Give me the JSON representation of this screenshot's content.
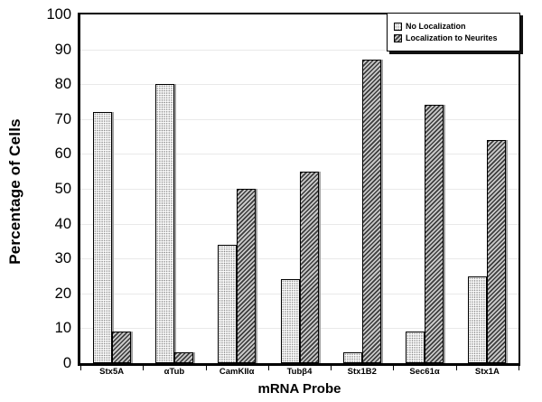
{
  "figure": {
    "background_color": "#ffffff",
    "axis_color": "#000000",
    "gridline_color": "#e9e9e9",
    "bar_border_color": "#000000",
    "bar_shadow_color": "#a0a0a0",
    "dots_pattern_color": "#7d7d7d",
    "hatch_pattern_color": "#3d3d3d"
  },
  "chart_data": {
    "type": "bar",
    "title": "",
    "xlabel": "mRNA Probe",
    "ylabel": "Percentage of Cells",
    "ylim": [
      0,
      100
    ],
    "yticks": [
      0,
      10,
      20,
      30,
      40,
      50,
      60,
      70,
      80,
      90,
      100
    ],
    "grid": "horizontal",
    "legend_position": "top-right",
    "categories": [
      "Stx5A",
      "αTub",
      "CamKIIα",
      "Tubβ4",
      "Stx1B2",
      "Sec61α",
      "Stx1A"
    ],
    "series": [
      {
        "name": "No Localization",
        "pattern": "dots",
        "values": [
          72,
          80,
          34,
          24,
          3,
          9,
          25
        ]
      },
      {
        "name": "Localization to Neurites",
        "pattern": "diagonal-hatch",
        "values": [
          9,
          3,
          50,
          55,
          87,
          74,
          64
        ]
      }
    ]
  }
}
